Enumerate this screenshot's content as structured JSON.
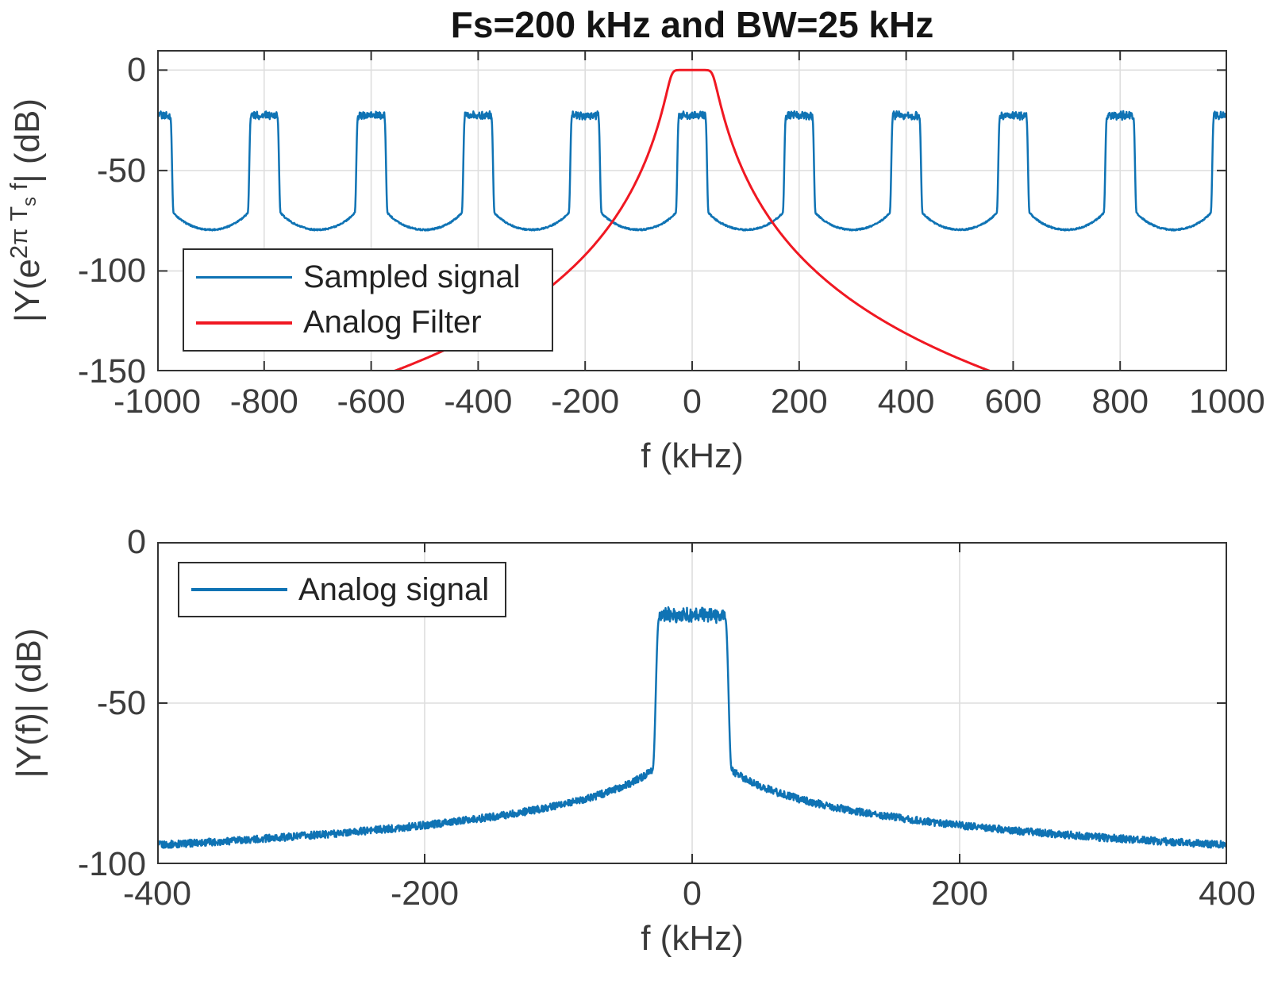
{
  "figure_title": "Fs=200 kHz and BW=25 kHz",
  "chart_data": [
    {
      "type": "line",
      "title": "Fs=200 kHz and BW=25 kHz",
      "xlabel": "f (kHz)",
      "ylabel": "|Y(e^{2π T_s f}| (dB)",
      "ylabel_parts": {
        "pre": "|Y(e",
        "exp": "2π T",
        "sub": "s",
        "exp2": " f",
        "post": "| (dB)"
      },
      "xlim": [
        -1000,
        1000
      ],
      "ylim": [
        -150,
        10
      ],
      "xticks": [
        -1000,
        -800,
        -600,
        -400,
        -200,
        0,
        200,
        400,
        600,
        800,
        1000
      ],
      "yticks": [
        0,
        -50,
        -100,
        -150
      ],
      "xtick_labels": [
        "-1000",
        "-800",
        "-600",
        "-400",
        "-200",
        "0",
        "200",
        "400",
        "600",
        "800",
        "1000"
      ],
      "ytick_labels": [
        "0",
        "-50",
        "-100",
        "-150"
      ],
      "grid": true,
      "legend": {
        "location": "southwest",
        "entries": [
          "Sampled signal",
          "Analog Filter"
        ]
      },
      "series": [
        {
          "name": "Sampled signal",
          "color": "#0f73b4",
          "line_width": 2.5,
          "model": "sampled_spectrum",
          "replica_period_khz": 200,
          "replica_centers_khz": [
            -1000,
            -800,
            -600,
            -400,
            -200,
            0,
            200,
            400,
            600,
            800,
            1000
          ],
          "passband_level_db": -22.6,
          "passband_halfwidth_khz": 24.5,
          "edge_width_khz": 6.5,
          "ripple_db": 2.0,
          "trough_level_db": -79.5,
          "trough_noise_db": 0.35,
          "skirt": {
            "ref_khz": 30,
            "ref_db": -71,
            "slope_db_per_decade": -22
          }
        },
        {
          "name": "Analog Filter",
          "color": "#f01822",
          "line_width": 3,
          "model": "filter_skirt",
          "passband_level_db": 0,
          "flat_halfwidth_khz": 20,
          "skirt": {
            "ref_khz": 95,
            "ref_db": -50,
            "slope_db_per_decade": -130
          },
          "key_points_khz_db": [
            [
              0,
              0
            ],
            [
              20,
              0
            ],
            [
              50,
              -14
            ],
            [
              97,
              -50
            ],
            [
              254,
              -103
            ],
            [
              402,
              -128
            ],
            [
              568,
              -150
            ]
          ]
        }
      ]
    },
    {
      "type": "line",
      "title": "",
      "xlabel": "f (kHz)",
      "ylabel": "|Y(f)| (dB)",
      "xlim": [
        -400,
        400
      ],
      "ylim": [
        -100,
        0
      ],
      "xticks": [
        -400,
        -200,
        0,
        200,
        400
      ],
      "yticks": [
        0,
        -50,
        -100
      ],
      "xtick_labels": [
        "-400",
        "-200",
        "0",
        "200",
        "400"
      ],
      "ytick_labels": [
        "0",
        "-50",
        "-100"
      ],
      "grid": true,
      "legend": {
        "location": "northwest",
        "entries": [
          "Analog signal"
        ]
      },
      "series": [
        {
          "name": "Analog signal",
          "color": "#0f73b4",
          "line_width": 2.5,
          "model": "analog_spectrum",
          "passband_level_db": -22.7,
          "passband_halfwidth_khz": 24.5,
          "edge_width_khz": 5.5,
          "ripple_db": 2.4,
          "tail_noise_db": 1.15,
          "skirt": {
            "ref_khz": 30,
            "ref_db": -71,
            "slope_db_per_decade": -20.5
          },
          "key_points_khz_db": [
            [
              30,
              -71
            ],
            [
              80,
              -79.7
            ],
            [
              200,
              -88
            ],
            [
              400,
              -94
            ]
          ]
        }
      ]
    }
  ]
}
